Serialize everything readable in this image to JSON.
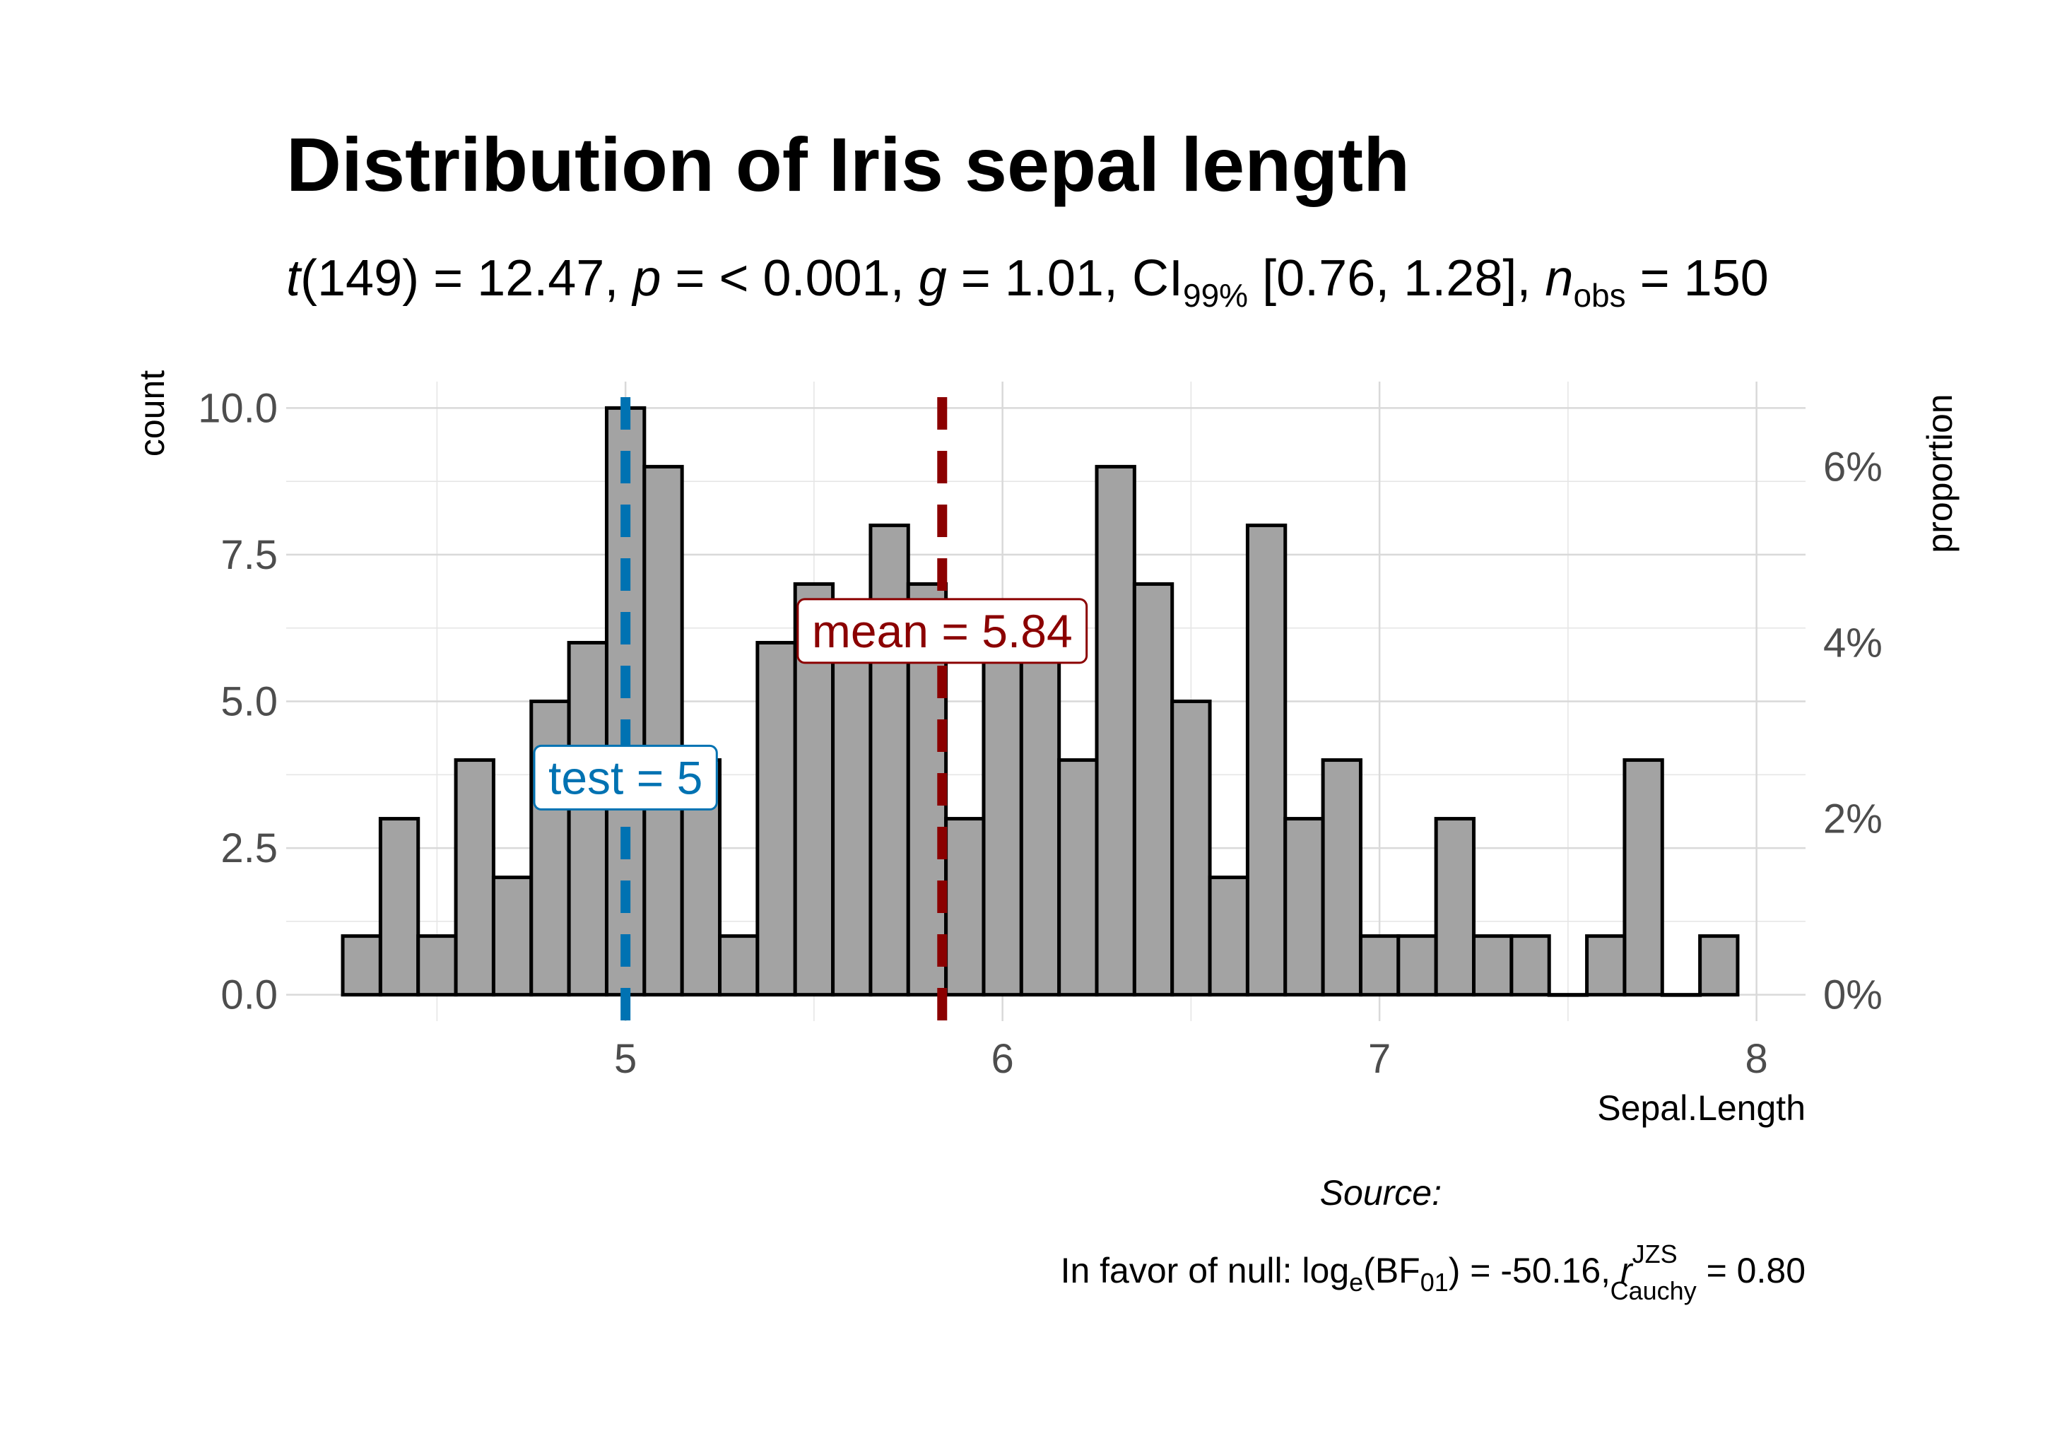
{
  "chart_data": {
    "type": "bar",
    "title": "Distribution of Iris sepal length",
    "subtitle": {
      "t_df": "149",
      "t_value": "12.47",
      "p_value": "< 0.001",
      "g_value": "1.01",
      "ci_level": "99%",
      "ci": "[0.76, 1.28]",
      "n_obs": "150"
    },
    "xlabel": "Sepal.Length",
    "ylabel": "count",
    "y2label": "proportion",
    "xlim": [
      4.1,
      8.13
    ],
    "ylim": [
      -0.45,
      10.45
    ],
    "x_ticks": [
      5,
      6,
      7,
      8
    ],
    "x_minor": [
      4.5,
      5.5,
      6.5,
      7.5
    ],
    "y_ticks": [
      0,
      2.5,
      5,
      7.5,
      10
    ],
    "y_tick_labels": [
      "0.0",
      "2.5",
      "5.0",
      "7.5",
      "10.0"
    ],
    "y2_tick_values": [
      0,
      0.02,
      0.04,
      0.06
    ],
    "y2_tick_labels": [
      "0%",
      "2%",
      "4%",
      "6%"
    ],
    "n_total": 150,
    "bin_width": 0.1,
    "bins": [
      {
        "x": 4.3,
        "count": 1
      },
      {
        "x": 4.4,
        "count": 3
      },
      {
        "x": 4.5,
        "count": 1
      },
      {
        "x": 4.6,
        "count": 4
      },
      {
        "x": 4.7,
        "count": 2
      },
      {
        "x": 4.8,
        "count": 5
      },
      {
        "x": 4.9,
        "count": 6
      },
      {
        "x": 5.0,
        "count": 10
      },
      {
        "x": 5.1,
        "count": 9
      },
      {
        "x": 5.2,
        "count": 4
      },
      {
        "x": 5.3,
        "count": 1
      },
      {
        "x": 5.4,
        "count": 6
      },
      {
        "x": 5.5,
        "count": 7
      },
      {
        "x": 5.6,
        "count": 6
      },
      {
        "x": 5.7,
        "count": 8
      },
      {
        "x": 5.8,
        "count": 7
      },
      {
        "x": 5.9,
        "count": 3
      },
      {
        "x": 6.0,
        "count": 6
      },
      {
        "x": 6.1,
        "count": 6
      },
      {
        "x": 6.2,
        "count": 4
      },
      {
        "x": 6.3,
        "count": 9
      },
      {
        "x": 6.4,
        "count": 7
      },
      {
        "x": 6.5,
        "count": 5
      },
      {
        "x": 6.6,
        "count": 2
      },
      {
        "x": 6.7,
        "count": 8
      },
      {
        "x": 6.8,
        "count": 3
      },
      {
        "x": 6.9,
        "count": 4
      },
      {
        "x": 7.0,
        "count": 1
      },
      {
        "x": 7.1,
        "count": 1
      },
      {
        "x": 7.2,
        "count": 3
      },
      {
        "x": 7.3,
        "count": 1
      },
      {
        "x": 7.4,
        "count": 1
      },
      {
        "x": 7.5,
        "count": 0
      },
      {
        "x": 7.6,
        "count": 1
      },
      {
        "x": 7.7,
        "count": 4
      },
      {
        "x": 7.8,
        "count": 0
      },
      {
        "x": 7.9,
        "count": 1
      }
    ],
    "reference_lines": [
      {
        "label_prefix": "test",
        "label_value": "5",
        "x": 5.0,
        "label_y": 3.7,
        "color": "#0072B2"
      },
      {
        "label_prefix": "mean",
        "label_value": "5.84",
        "x": 5.84,
        "label_y": 6.2,
        "color": "#8B0000"
      }
    ],
    "caption": {
      "source_label": "Source:",
      "favor_text": "In favor of null: log",
      "log_sub": "e",
      "bf_text": "(BF",
      "bf_sub": "01",
      "bf_value": ") = -50.16, ",
      "r_sup": "JZS",
      "r_sub": "Cauchy",
      "r_value": " = 0.80"
    }
  },
  "colors": {
    "bar_fill": "#a3a3a3",
    "bar_stroke": "#000000",
    "test_line": "#0072B2",
    "mean_line": "#8B0000"
  }
}
